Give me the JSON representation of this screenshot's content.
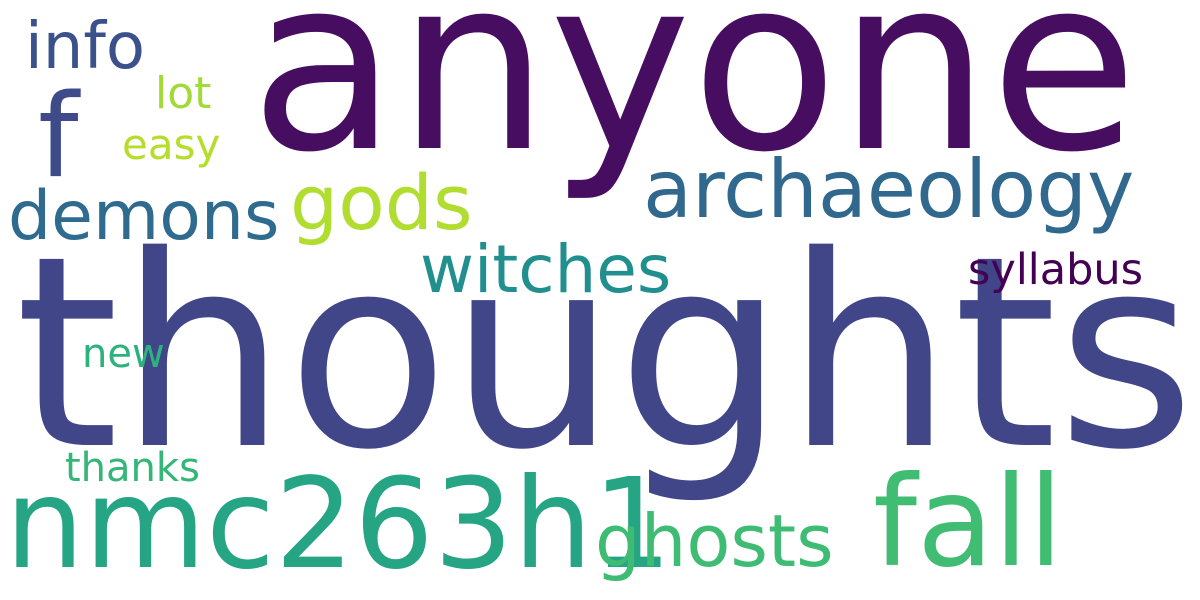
{
  "word_cloud": {
    "background": "#ffffff",
    "words": [
      {
        "text": "anyone",
        "color": "#470d60"
      },
      {
        "text": "thoughts",
        "color": "#404688"
      },
      {
        "text": "nmc263h1",
        "color": "#25a584"
      },
      {
        "text": "fall",
        "color": "#40bd72"
      },
      {
        "text": "f",
        "color": "#3e4a89"
      },
      {
        "text": "archaeology",
        "color": "#31688e"
      },
      {
        "text": "gods",
        "color": "#b0dd2f"
      },
      {
        "text": "demons",
        "color": "#2f6b8e"
      },
      {
        "text": "witches",
        "color": "#218f8d"
      },
      {
        "text": "ghosts",
        "color": "#3fbc73"
      },
      {
        "text": "info",
        "color": "#3b518b"
      },
      {
        "text": "syllabus",
        "color": "#440154"
      },
      {
        "text": "lot",
        "color": "#a2da37"
      },
      {
        "text": "easy",
        "color": "#b5de2b"
      },
      {
        "text": "new",
        "color": "#2db27d"
      },
      {
        "text": "thanks",
        "color": "#34b679"
      }
    ]
  }
}
